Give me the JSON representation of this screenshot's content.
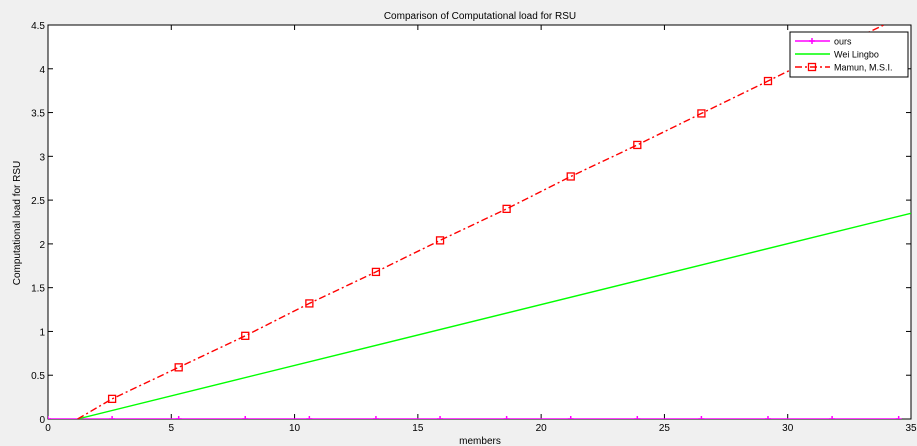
{
  "chart_data": {
    "type": "line",
    "title": "Comparison of Computational load for RSU",
    "xlabel": "members",
    "ylabel": "Computational load for RSU",
    "xlim": [
      0,
      35
    ],
    "ylim": [
      0,
      4.5
    ],
    "xticks": [
      0,
      5,
      10,
      15,
      20,
      25,
      30,
      35
    ],
    "yticks": [
      0,
      0.5,
      1,
      1.5,
      2,
      2.5,
      3,
      3.5,
      4,
      4.5
    ],
    "xtick_labels": [
      "0",
      "5",
      "10",
      "15",
      "20",
      "25",
      "30",
      "35"
    ],
    "ytick_labels": [
      "0",
      "0.5",
      "1",
      "1.5",
      "2",
      "2.5",
      "3",
      "3.5",
      "4",
      "4.5"
    ],
    "grid": false,
    "legend_position": "top-right",
    "series": [
      {
        "name": "ours",
        "color": "#ff00ff",
        "line_style": "solid",
        "marker": "plus",
        "x": [
          0,
          2.6,
          5.3,
          8,
          10.6,
          13.3,
          15.9,
          18.6,
          21.2,
          23.9,
          26.5,
          29.2,
          31.8,
          34.5
        ],
        "y": [
          0,
          0,
          0,
          0,
          0,
          0,
          0,
          0,
          0,
          0,
          0,
          0,
          0,
          0
        ]
      },
      {
        "name": "Wei Lingbo",
        "color": "#00ff00",
        "line_style": "solid",
        "marker": "none",
        "x": [
          1.2,
          35
        ],
        "y": [
          0,
          2.35
        ]
      },
      {
        "name": "Mamun, M.S.I.",
        "color": "#ff0000",
        "line_style": "dashdot",
        "marker": "square",
        "x": [
          1.2,
          2.6,
          5.3,
          8,
          10.6,
          13.3,
          15.9,
          18.6,
          21.2,
          23.9,
          26.5,
          29.2,
          31.8,
          34.5
        ],
        "y": [
          0,
          0.23,
          0.59,
          0.95,
          1.32,
          1.68,
          2.04,
          2.4,
          2.77,
          3.13,
          3.49,
          3.86,
          4.22,
          4.58
        ],
        "marker_x": [
          2.6,
          5.3,
          8,
          10.6,
          13.3,
          15.9,
          18.6,
          21.2,
          23.9,
          26.5,
          29.2
        ],
        "marker_y": [
          0.23,
          0.59,
          0.95,
          1.32,
          1.68,
          2.04,
          2.4,
          2.77,
          3.13,
          3.49,
          3.86
        ]
      }
    ]
  }
}
